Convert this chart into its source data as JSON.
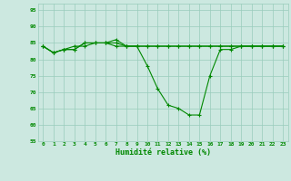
{
  "title": "",
  "xlabel": "Humidité relative (%)",
  "ylabel": "",
  "xlim": [
    -0.5,
    23.5
  ],
  "ylim": [
    55,
    97
  ],
  "yticks": [
    55,
    60,
    65,
    70,
    75,
    80,
    85,
    90,
    95
  ],
  "xticks": [
    0,
    1,
    2,
    3,
    4,
    5,
    6,
    7,
    8,
    9,
    10,
    11,
    12,
    13,
    14,
    15,
    16,
    17,
    18,
    19,
    20,
    21,
    22,
    23
  ],
  "background_color": "#cce8e0",
  "grid_color": "#99ccbb",
  "line_color": "#008800",
  "marker_color": "#008800",
  "series": [
    [
      84,
      82,
      83,
      83,
      85,
      85,
      85,
      86,
      84,
      84,
      84,
      84,
      84,
      84,
      84,
      84,
      84,
      84,
      84,
      84,
      84,
      84,
      84,
      84
    ],
    [
      84,
      82,
      83,
      83,
      85,
      85,
      85,
      84,
      84,
      84,
      78,
      71,
      66,
      65,
      63,
      63,
      75,
      83,
      83,
      84,
      84,
      84,
      84,
      84
    ],
    [
      84,
      82,
      83,
      84,
      84,
      85,
      85,
      85,
      84,
      84,
      84,
      84,
      84,
      84,
      84,
      84,
      84,
      84,
      84,
      84,
      84,
      84,
      84,
      84
    ]
  ]
}
